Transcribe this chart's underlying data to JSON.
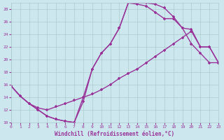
{
  "xlabel": "Windchill (Refroidissement éolien,°C)",
  "bg_color": "#cce8ee",
  "line_color": "#993399",
  "grid_color": "#aacccc",
  "xlim": [
    0,
    23
  ],
  "ylim": [
    10,
    29
  ],
  "xticks": [
    0,
    1,
    2,
    3,
    4,
    5,
    6,
    7,
    8,
    9,
    10,
    11,
    12,
    13,
    14,
    15,
    16,
    17,
    18,
    19,
    20,
    21,
    22,
    23
  ],
  "yticks": [
    10,
    12,
    14,
    16,
    18,
    20,
    22,
    24,
    26,
    28
  ],
  "line1_x": [
    0,
    1,
    2,
    3,
    4,
    5,
    6,
    7,
    8,
    9,
    10,
    11,
    12,
    13,
    14,
    15,
    16,
    17,
    18,
    19,
    20,
    21,
    22,
    23
  ],
  "line1_y": [
    15.8,
    14.2,
    13.0,
    12.0,
    11.0,
    10.5,
    10.2,
    10.0,
    13.3,
    18.5,
    21.0,
    22.5,
    25.0,
    29.0,
    29.0,
    29.0,
    28.8,
    28.2,
    26.8,
    25.0,
    22.5,
    21.0,
    19.5,
    19.5
  ],
  "line2_x": [
    0,
    1,
    2,
    3,
    4,
    5,
    6,
    7,
    8,
    9,
    10,
    11,
    12,
    13,
    14,
    15,
    16,
    17,
    18,
    19,
    20,
    21,
    22,
    23
  ],
  "line2_y": [
    15.8,
    14.2,
    13.0,
    12.0,
    11.0,
    10.5,
    10.2,
    10.0,
    14.0,
    18.5,
    21.0,
    22.5,
    25.0,
    29.0,
    28.8,
    28.5,
    27.5,
    26.5,
    26.5,
    25.0,
    24.8,
    22.0,
    22.0,
    19.5
  ],
  "line3_x": [
    0,
    1,
    2,
    3,
    4,
    5,
    6,
    7,
    8,
    9,
    10,
    11,
    12,
    13,
    14,
    15,
    16,
    17,
    18,
    19,
    20,
    21,
    22,
    23
  ],
  "line3_y": [
    15.8,
    14.2,
    13.0,
    12.3,
    12.0,
    12.5,
    13.0,
    13.5,
    14.0,
    14.5,
    15.2,
    16.0,
    17.0,
    17.8,
    18.5,
    19.5,
    20.5,
    21.5,
    22.5,
    23.5,
    24.5,
    22.0,
    22.0,
    19.5
  ]
}
